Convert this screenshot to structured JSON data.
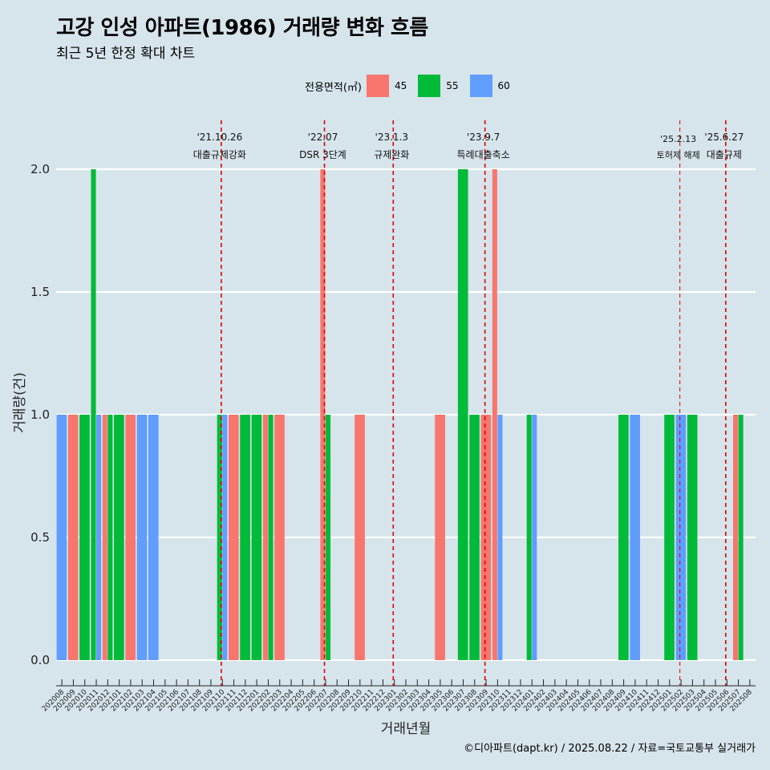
{
  "header": {
    "title": "고강 인성 아파트(1986) 거래량 변화 흐름",
    "subtitle": "최근 5년 한정 확대 차트"
  },
  "legend": {
    "title": "전용면적(㎡)",
    "items": [
      {
        "label": "45",
        "color": "#f8766d"
      },
      {
        "label": "55",
        "color": "#00ba38"
      },
      {
        "label": "60",
        "color": "#619cff"
      }
    ]
  },
  "caption": "©디아파트(dapt.kr) / 2025.08.22 / 자료=국토교통부 실거래가",
  "chart_data": {
    "type": "bar",
    "title": "고강 인성 아파트(1986) 거래량 변화 흐름",
    "xlabel": "거래년월",
    "ylabel": "거래량(건)",
    "ylim": [
      -0.1,
      2.15
    ],
    "yticks": [
      0.0,
      0.5,
      1.0,
      1.5,
      2.0
    ],
    "ytick_labels": [
      "0.0",
      "0.5",
      "1.0",
      "1.5",
      "2.0"
    ],
    "categories": [
      "202008",
      "202009",
      "202010",
      "202011",
      "202012",
      "202101",
      "202102",
      "202103",
      "202104",
      "202105",
      "202106",
      "202107",
      "202108",
      "202109",
      "202110",
      "202111",
      "202112",
      "202201",
      "202202",
      "202203",
      "202204",
      "202205",
      "202206",
      "202207",
      "202208",
      "202209",
      "202210",
      "202211",
      "202212",
      "202301",
      "202302",
      "202303",
      "202304",
      "202305",
      "202306",
      "202307",
      "202308",
      "202309",
      "202310",
      "202311",
      "202312",
      "202401",
      "202402",
      "202403",
      "202404",
      "202405",
      "202406",
      "202407",
      "202408",
      "202409",
      "202410",
      "202411",
      "202412",
      "202501",
      "202502",
      "202503",
      "202504",
      "202505",
      "202506",
      "202507",
      "202508"
    ],
    "bars": [
      {
        "month": "202008",
        "segments": [
          {
            "area": "60",
            "value": 1
          }
        ]
      },
      {
        "month": "202009",
        "segments": [
          {
            "area": "45",
            "value": 1
          }
        ]
      },
      {
        "month": "202010",
        "segments": [
          {
            "area": "55",
            "value": 1
          }
        ]
      },
      {
        "month": "202011",
        "segments": [
          {
            "area": "55",
            "value": 2
          },
          {
            "area": "60",
            "value": 1
          }
        ]
      },
      {
        "month": "202012",
        "segments": [
          {
            "area": "45",
            "value": 1
          },
          {
            "area": "55",
            "value": 1
          }
        ]
      },
      {
        "month": "202101",
        "segments": [
          {
            "area": "55",
            "value": 1
          }
        ]
      },
      {
        "month": "202102",
        "segments": [
          {
            "area": "45",
            "value": 1
          }
        ]
      },
      {
        "month": "202103",
        "segments": [
          {
            "area": "60",
            "value": 1
          }
        ]
      },
      {
        "month": "202104",
        "segments": [
          {
            "area": "60",
            "value": 1
          }
        ]
      },
      {
        "month": "202110",
        "segments": [
          {
            "area": "55",
            "value": 1
          },
          {
            "area": "60",
            "value": 1
          }
        ]
      },
      {
        "month": "202111",
        "segments": [
          {
            "area": "45",
            "value": 1
          }
        ]
      },
      {
        "month": "202112",
        "segments": [
          {
            "area": "55",
            "value": 1
          }
        ]
      },
      {
        "month": "202201",
        "segments": [
          {
            "area": "55",
            "value": 1
          }
        ]
      },
      {
        "month": "202202",
        "segments": [
          {
            "area": "45",
            "value": 1
          },
          {
            "area": "55",
            "value": 1
          }
        ]
      },
      {
        "month": "202203",
        "segments": [
          {
            "area": "45",
            "value": 1
          }
        ]
      },
      {
        "month": "202207",
        "segments": [
          {
            "area": "45",
            "value": 2
          },
          {
            "area": "55",
            "value": 1
          }
        ]
      },
      {
        "month": "202210",
        "segments": [
          {
            "area": "45",
            "value": 1
          }
        ]
      },
      {
        "month": "202305",
        "segments": [
          {
            "area": "45",
            "value": 1
          }
        ]
      },
      {
        "month": "202307",
        "segments": [
          {
            "area": "55",
            "value": 2
          }
        ]
      },
      {
        "month": "202308",
        "segments": [
          {
            "area": "55",
            "value": 1
          }
        ]
      },
      {
        "month": "202309",
        "segments": [
          {
            "area": "45",
            "value": 1
          }
        ]
      },
      {
        "month": "202310",
        "segments": [
          {
            "area": "45",
            "value": 2
          },
          {
            "area": "60",
            "value": 1
          }
        ]
      },
      {
        "month": "202401",
        "segments": [
          {
            "area": "55",
            "value": 1
          },
          {
            "area": "60",
            "value": 1
          }
        ]
      },
      {
        "month": "202409",
        "segments": [
          {
            "area": "55",
            "value": 1
          }
        ]
      },
      {
        "month": "202410",
        "segments": [
          {
            "area": "60",
            "value": 1
          }
        ]
      },
      {
        "month": "202501",
        "segments": [
          {
            "area": "55",
            "value": 1
          }
        ]
      },
      {
        "month": "202502",
        "segments": [
          {
            "area": "60",
            "value": 1
          }
        ]
      },
      {
        "month": "202503",
        "segments": [
          {
            "area": "55",
            "value": 1
          }
        ]
      },
      {
        "month": "202507",
        "segments": [
          {
            "area": "45",
            "value": 1
          },
          {
            "area": "55",
            "value": 1
          }
        ]
      }
    ],
    "annotations": [
      {
        "at": 14.4,
        "date": "'21.10.26",
        "label": "대출규제강화",
        "small": false
      },
      {
        "at": 23.4,
        "date": "'22.07",
        "label": "DSR 3단계",
        "small": false
      },
      {
        "at": 29.4,
        "date": "'23.1.3",
        "label": "규제완화",
        "small": false
      },
      {
        "at": 37.4,
        "date": "'23.9.7",
        "label": "특례대출축소",
        "small": false
      },
      {
        "at": 54.4,
        "date": "'25.2.13",
        "label": "토허제 해제",
        "small": true
      },
      {
        "at": 58.4,
        "date": "'25.6.27",
        "label": "대출규제",
        "small": false
      }
    ]
  }
}
